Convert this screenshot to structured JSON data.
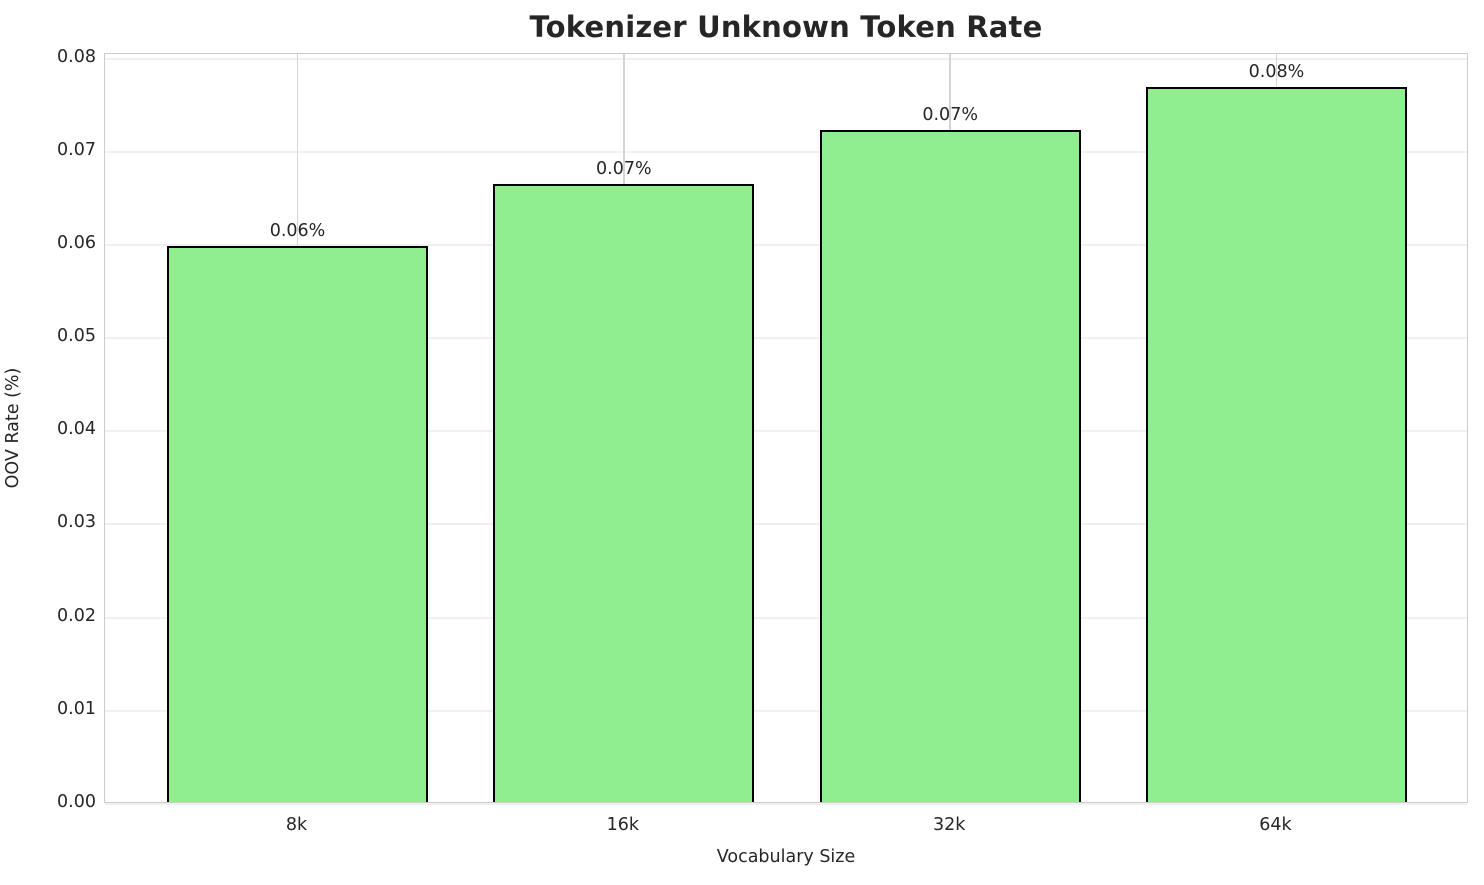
{
  "chart_data": {
    "type": "bar",
    "title": "Tokenizer Unknown Token Rate",
    "xlabel": "Vocabulary Size",
    "ylabel": "OOV Rate (%)",
    "categories": [
      "8k",
      "16k",
      "32k",
      "64k"
    ],
    "values": [
      0.0597,
      0.0663,
      0.0721,
      0.0767
    ],
    "bar_labels": [
      "0.06%",
      "0.07%",
      "0.07%",
      "0.08%"
    ],
    "ylim": [
      0,
      0.0805
    ],
    "xlim": [
      -0.59,
      3.59
    ],
    "yticks": [
      0.0,
      0.01,
      0.02,
      0.03,
      0.04,
      0.05,
      0.06,
      0.07,
      0.08
    ],
    "ytick_labels": [
      "0.00",
      "0.01",
      "0.02",
      "0.03",
      "0.04",
      "0.05",
      "0.06",
      "0.07",
      "0.08"
    ],
    "bar_width_units": 0.8,
    "grid": true,
    "legend": "none",
    "bar_color": "#90EE90",
    "bar_edge_color": "#000000",
    "text_color": "#262626",
    "hgrid_color": "#f0f0f0",
    "vgrid_color": "#d4d4d4",
    "spine_color": "#cccccc",
    "background_color": "#ffffff"
  }
}
